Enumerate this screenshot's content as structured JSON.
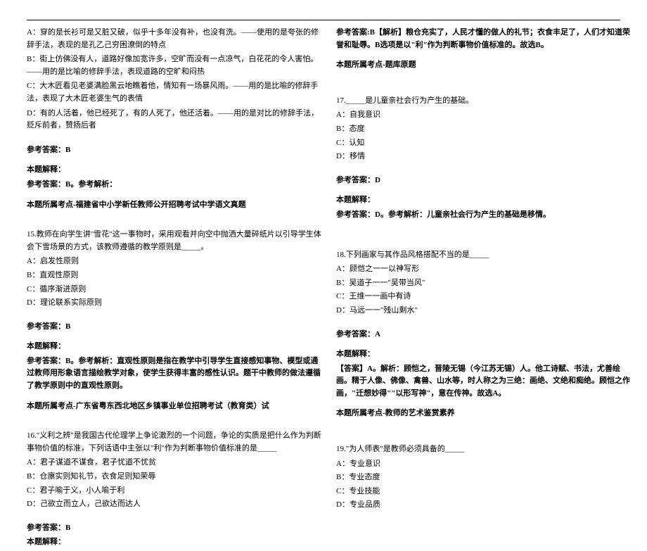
{
  "left": {
    "q14": {
      "optA": "A：穿的是长衫可是又脏又破，似乎十多年没有补，也没有洗。——使用的是夸张的修辞手法，表现的是孔乙己穷困潦倒的特点",
      "optB": "B：街上仿佛没有人，道路好像加宽许多，空旷而没有一点凉气，白花花的令人害怕。——用的是比喻的修辞手法，表现道路的空旷和闷热",
      "optC": "C：大木匠看见老婆满脸黑云地瞧着他，情知有一场暴风雨。——用的是比喻的修辞手法，表现了大木匠老婆生气的表情",
      "optD": "D：有的人活着，他已经死了，有的人死了，他还活着。——用的是对比的修辞手法，贬斥前者，赞扬后者",
      "ansLabel": "参考答案：B",
      "explainLabel": "本题解释：",
      "explain": "参考答案：B。参考解析：",
      "topicLabel": "本题所属考点-福建省中小学新任教师公开招聘考试中学语文真题"
    },
    "q15": {
      "stem": "15.教师在向学生讲\"雪花\"这一事物时，采用观看并向空中抛洒大量碎纸片以引导学生体会下雪场景的方式，该教师遵循的教学原则是_____。",
      "optA": "A：启发性原则",
      "optB": "B：直观性原则",
      "optC": "C：循序渐进原则",
      "optD": "D：理论联系实际原则",
      "ansLabel": "参考答案：B",
      "explainLabel": "本题解释：",
      "explain": "参考答案：B。参考解析：直观性原则是指在教学中引导学生直接感知事物、模型或通过教师用形象语言描绘教学对象，使学生获得丰富的感性认识。题干中教师的做法遵循了教学原则中的直观性原则。",
      "topicLabel": "本题所属考点-广东省粤东西北地区乡镇事业单位招聘考试（教育类）试"
    },
    "q16": {
      "stem": "16.\"义利之辨\"是我国古代伦理学上争论激烈的一个问题，争论的实质是把什么作为判断事物价值的标准，下列话语中主张以\"利\"作为判断事物价值标准的是_____",
      "optA": "A：君子谋道不谋食，君子忧道不忧贫",
      "optB": "B：仓廪实则知礼节，衣食足则知荣辱",
      "optC": "C：君子喻于义，小人喻于利",
      "optD": "D：己欲立而立人，己欲达而达人",
      "ansLabel": "参考答案：B",
      "explainLabel": "本题解释："
    }
  },
  "right": {
    "q16cont": {
      "explain": "参考答案:B【解析】粮仓充实了，人民才懂的做人的礼节；衣食丰足了，人们才知道荣誉和耻辱。B选项是以\"利\"作为判断事物价值标准的。故选B。",
      "topicLabel": "本题所属考点-题库原题"
    },
    "q17": {
      "stem": "17._____是儿童亲社会行为产生的基础。",
      "optA": "A：自我意识",
      "optB": "B：态度",
      "optC": "C：认知",
      "optD": "D：移情",
      "ansLabel": "参考答案：D",
      "explainLabel": "本题解释：",
      "explain": "参考答案：D。参考解析：儿童亲社会行为产生的基础是移情。"
    },
    "q18": {
      "stem": "18.下列画家与其作品风格搭配不当的是_____",
      "optA": "A：顾恺之一一以神写形",
      "optB": "B：吴道子一一\"吴带当风\"",
      "optC": "C：王维一一画中有诗",
      "optD": "D：马远一一\"残山剩水\"",
      "ansLabel": "参考答案：A",
      "explainLabel": "本题解释：",
      "explain": "【答案】A。解析：顾恺之，晋陵无锡（今江苏无锡）人。他工诗赋、书法，尤善绘画。精于人像、佛像、禽兽、山水等，时人称之为三绝：画绝、文绝和痴绝。顾恺之作画，\"迁想妙得\"\"以形写神\"，意在传神。故选A。",
      "topicLabel": "本题所属考点-教师的艺术鉴赏素养"
    },
    "q19": {
      "stem": "19.\"为人师表\"是教师必须具备的_____",
      "optA": "A：专业意识",
      "optB": "B：专业态度",
      "optC": "C：专业技能",
      "optD": "D：专业品质"
    }
  }
}
